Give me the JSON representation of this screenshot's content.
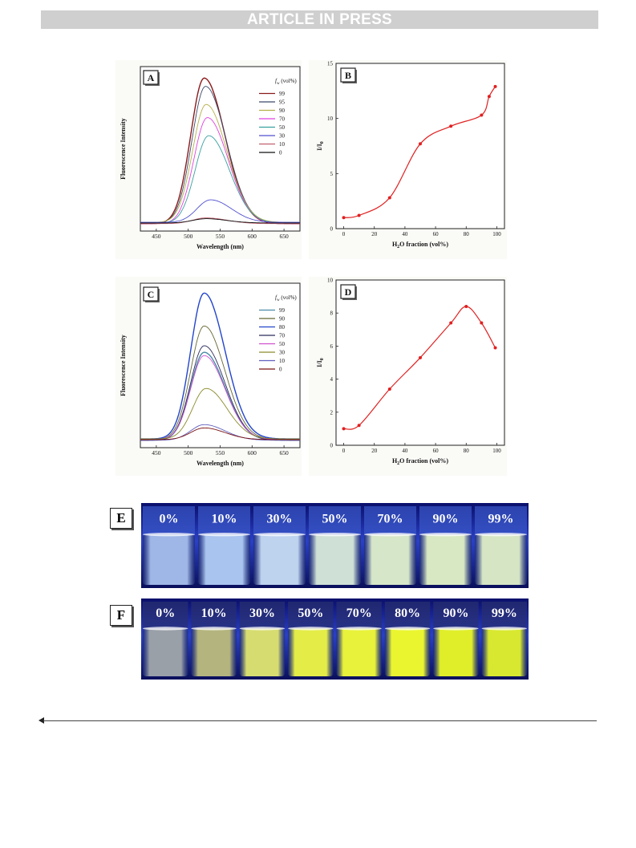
{
  "header": {
    "banner_text": "ARTICLE IN PRESS"
  },
  "colors": {
    "banner_bg": "#cfcfcf",
    "fit_line": "#e02020",
    "uv_vial_top": "#c8dcf6",
    "uv_vial_bottom": "#1a2a88"
  },
  "chart_data": [
    {
      "panel": "A",
      "type": "line",
      "xlabel": "Wavelength (nm)",
      "ylabel": "Fluorescence Intensity",
      "xticks": [
        450,
        500,
        550,
        600,
        650
      ],
      "xlim": [
        425,
        675
      ],
      "legend_title": "f_w (vol%)",
      "legend_placement": "top-right",
      "series": [
        {
          "name": "99",
          "color": "#8b1a1a",
          "peak_x": 525,
          "peak_y": 0.93
        },
        {
          "name": "95",
          "color": "#3a4a6a",
          "peak_x": 527,
          "peak_y": 0.88
        },
        {
          "name": "90",
          "color": "#b5b04a",
          "peak_x": 528,
          "peak_y": 0.77
        },
        {
          "name": "70",
          "color": "#e040e0",
          "peak_x": 530,
          "peak_y": 0.69
        },
        {
          "name": "50",
          "color": "#3aa0a0",
          "peak_x": 532,
          "peak_y": 0.58
        },
        {
          "name": "30",
          "color": "#5050d0",
          "peak_x": 535,
          "peak_y": 0.19
        },
        {
          "name": "10",
          "color": "#c06070",
          "peak_x": 528,
          "peak_y": 0.08
        },
        {
          "name": "0",
          "color": "#111111",
          "peak_x": 528,
          "peak_y": 0.075
        }
      ]
    },
    {
      "panel": "B",
      "type": "scatter",
      "xlabel": "H2O fraction (vol%)",
      "ylabel": "I/I0",
      "xlim": [
        -5,
        105
      ],
      "ylim": [
        0,
        15
      ],
      "xticks": [
        0,
        20,
        40,
        60,
        80,
        100
      ],
      "yticks": [
        0,
        5,
        10,
        15
      ],
      "x": [
        0,
        10,
        30,
        50,
        70,
        90,
        95,
        99
      ],
      "y": [
        1.0,
        1.2,
        2.8,
        7.7,
        9.3,
        10.3,
        12.0,
        12.9
      ]
    },
    {
      "panel": "C",
      "type": "line",
      "xlabel": "Wavelength (nm)",
      "ylabel": "Fluorescence Intensity",
      "xticks": [
        450,
        500,
        550,
        600,
        650
      ],
      "xlim": [
        425,
        675
      ],
      "legend_title": "f_w (vol%)",
      "legend_placement": "top-right",
      "series": [
        {
          "name": "99",
          "color": "#4a8aa8",
          "peak_x": 525,
          "peak_y": 0.58
        },
        {
          "name": "90",
          "color": "#666633",
          "peak_x": 525,
          "peak_y": 0.74
        },
        {
          "name": "80",
          "color": "#2244cc",
          "peak_x": 525,
          "peak_y": 0.94
        },
        {
          "name": "70",
          "color": "#2a2a5a",
          "peak_x": 525,
          "peak_y": 0.62
        },
        {
          "name": "50",
          "color": "#d050d0",
          "peak_x": 525,
          "peak_y": 0.56
        },
        {
          "name": "30",
          "color": "#8a8a2a",
          "peak_x": 528,
          "peak_y": 0.36
        },
        {
          "name": "10",
          "color": "#6060c0",
          "peak_x": 525,
          "peak_y": 0.14
        },
        {
          "name": "0",
          "color": "#7a1010",
          "peak_x": 525,
          "peak_y": 0.12
        }
      ]
    },
    {
      "panel": "D",
      "type": "scatter",
      "xlabel": "H2O fraction (vol%)",
      "ylabel": "I/I0",
      "xlim": [
        -5,
        105
      ],
      "ylim": [
        0,
        10
      ],
      "xticks": [
        0,
        20,
        40,
        60,
        80,
        100
      ],
      "yticks": [
        0,
        2,
        4,
        6,
        8,
        10
      ],
      "x": [
        0,
        10,
        30,
        50,
        70,
        80,
        90,
        99
      ],
      "y": [
        1.0,
        1.2,
        3.4,
        5.3,
        7.4,
        8.4,
        7.4,
        5.9
      ]
    }
  ],
  "photo_E": {
    "label": "E",
    "vials": [
      "0%",
      "10%",
      "30%",
      "50%",
      "70%",
      "90%",
      "99%"
    ],
    "liquid_colors": [
      "#9fb7e6",
      "#a9c4ee",
      "#bed3ee",
      "#cfe0d6",
      "#d6e6c8",
      "#d8e8c2",
      "#d6e6c4"
    ]
  },
  "photo_F": {
    "label": "F",
    "vials": [
      "0%",
      "10%",
      "30%",
      "50%",
      "70%",
      "80%",
      "90%",
      "99%"
    ],
    "liquid_colors": [
      "#9aa0a8",
      "#b4b47e",
      "#d6dc70",
      "#e4ec48",
      "#e8f23a",
      "#eaf530",
      "#e0ee2a",
      "#d8e830"
    ]
  }
}
